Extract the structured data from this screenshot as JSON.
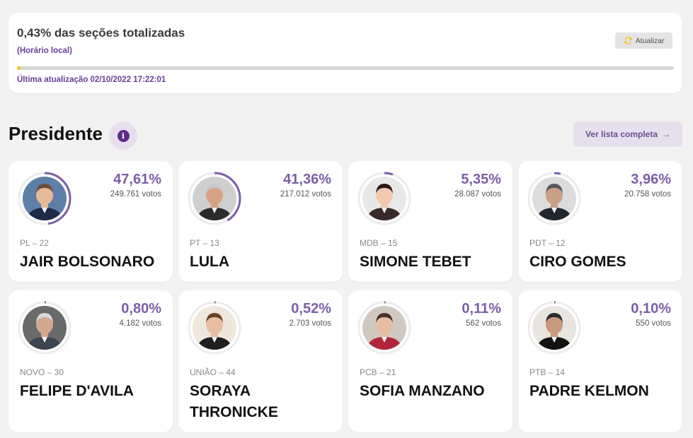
{
  "status": {
    "title": "0,43% das seções totalizadas",
    "subtitle": "(Horário local)",
    "refresh_label": "Atualizar",
    "progress_fraction": 0.0043,
    "last_update": "Última atualização 02/10/2022 17:22:01"
  },
  "section": {
    "title": "Presidente",
    "info_icon": "i",
    "list_button": "Ver lista completa",
    "list_arrow": "→"
  },
  "colors": {
    "accent": "#7b5ea7",
    "brand_dark": "#6b3d9a",
    "progress": "#f2c314",
    "ring_track": "#ececec"
  },
  "candidates": [
    {
      "pct": "47,61%",
      "votes": "249.761 votos",
      "party": "PL – 22",
      "name": "JAIR BOLSONARO",
      "share": 0.4761,
      "bg": "#5d7fa8",
      "skin": "#e6b99a",
      "hair": "#6b4e3a",
      "suit": "#1e2a48"
    },
    {
      "pct": "41,36%",
      "votes": "217.012 votos",
      "party": "PT – 13",
      "name": "LULA",
      "share": 0.4136,
      "bg": "#cfcfcf",
      "skin": "#d6a483",
      "hair": "#c8c8c8",
      "suit": "#2b2b2b"
    },
    {
      "pct": "5,35%",
      "votes": "28.087 votos",
      "party": "MDB – 15",
      "name": "SIMONE TEBET",
      "share": 0.0535,
      "bg": "#e8e8e8",
      "skin": "#f0c9b0",
      "hair": "#2a1a14",
      "suit": "#3a2b2b"
    },
    {
      "pct": "3,96%",
      "votes": "20.758 votos",
      "party": "PDT – 12",
      "name": "CIRO GOMES",
      "share": 0.0396,
      "bg": "#dcdcdc",
      "skin": "#caa087",
      "hair": "#5a5a5a",
      "suit": "#22262e"
    },
    {
      "pct": "0,80%",
      "votes": "4.182 votos",
      "party": "NOVO – 30",
      "name": "FELIPE D'AVILA",
      "share": 0.008,
      "bg": "#6a6a6a",
      "skin": "#d2a78f",
      "hair": "#d8d8d8",
      "suit": "#3d4452"
    },
    {
      "pct": "0,52%",
      "votes": "2.703 votos",
      "party": "UNIÃO – 44",
      "name": "SORAYA THRONICKE",
      "share": 0.0052,
      "bg": "#efe6dc",
      "skin": "#e9bfa3",
      "hair": "#6b4324",
      "suit": "#1f1f1f"
    },
    {
      "pct": "0,11%",
      "votes": "562 votos",
      "party": "PCB – 21",
      "name": "SOFIA MANZANO",
      "share": 0.0011,
      "bg": "#cfc9c2",
      "skin": "#e5bda3",
      "hair": "#4a3327",
      "suit": "#b02638"
    },
    {
      "pct": "0,10%",
      "votes": "550 votos",
      "party": "PTB – 14",
      "name": "PADRE KELMON",
      "share": 0.001,
      "bg": "#e8e4e0",
      "skin": "#c99a7d",
      "hair": "#2b2b2b",
      "suit": "#121212"
    }
  ]
}
